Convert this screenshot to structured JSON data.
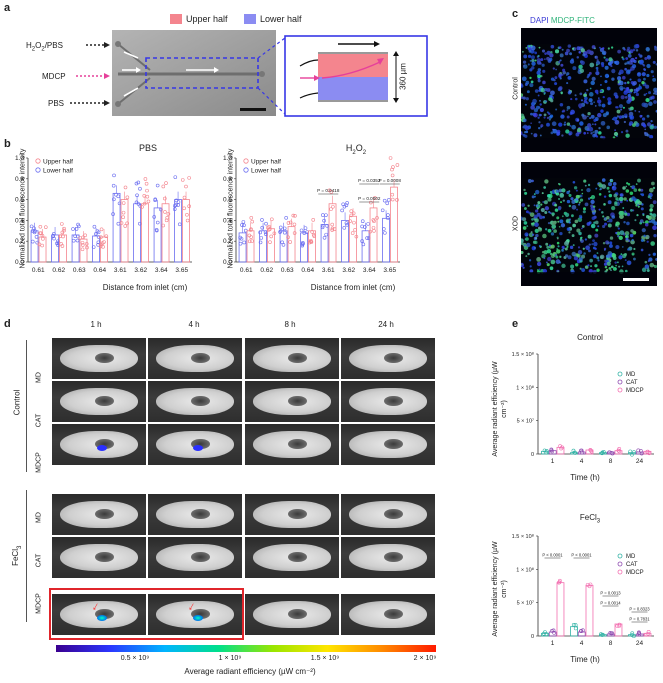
{
  "panels": {
    "a": "a",
    "b": "b",
    "c": "c",
    "d": "d",
    "e": "e"
  },
  "panel_a": {
    "legend_upper": "Upper half",
    "legend_lower": "Lower half",
    "inlet_top": "H2O2/PBS",
    "inlet_mid": "MDCP",
    "inlet_bot": "PBS",
    "width_label": "360 µm",
    "colors": {
      "upper": "#f4858e",
      "lower": "#8b8cf2",
      "dashed_box": "#3737e6",
      "arrow_mid": "#e6409a"
    }
  },
  "panel_b": {
    "ylabel": "Normalized total fluorescence intensity",
    "xlabel": "Distance from inlet (cm)",
    "legend_upper": "Upper half",
    "legend_lower": "Lower half"
  },
  "panel_c": {
    "label_dapi": "DAPI",
    "label_mdcp": "MDCP-FITC",
    "row_control": "Control",
    "row_xod": "XOD"
  },
  "panel_d": {
    "times": [
      "1 h",
      "4 h",
      "8 h",
      "24 h"
    ],
    "group_control": "Control",
    "group_fecl3": "FeCl3",
    "rows": [
      "MD",
      "CAT",
      "MDCP",
      "MD",
      "CAT",
      "MDCP"
    ],
    "colorbar_ticks": [
      "0.5 × 10⁹",
      "1 × 10⁹",
      "1.5 × 10⁹",
      "2 × 10⁹"
    ],
    "colorbar_label": "Average radiant efficiency (µW cm⁻²)"
  },
  "panel_e": {
    "ylabel": "Average radiant efficiency (µW cm⁻²)",
    "xlabel": "Time (h)"
  },
  "chart_data": [
    {
      "type": "bar",
      "title": "PBS",
      "xlabel": "Distance from inlet (cm)",
      "ylabel": "Normalized total fluorescence intensity",
      "ylim": [
        0,
        1.0
      ],
      "yticks": [
        0,
        0.2,
        0.4,
        0.6,
        0.8,
        1.0
      ],
      "categories": [
        "0.61",
        "0.62",
        "0.63",
        "0.64",
        "3.61",
        "3.62",
        "3.64",
        "3.65"
      ],
      "series": [
        {
          "name": "Upper half",
          "color": "#f4858e",
          "values": [
            0.24,
            0.26,
            0.22,
            0.24,
            0.6,
            0.56,
            0.56,
            0.6
          ]
        },
        {
          "name": "Lower half",
          "color": "#6b6ef0",
          "values": [
            0.3,
            0.26,
            0.26,
            0.25,
            0.66,
            0.56,
            0.52,
            0.6
          ]
        }
      ],
      "annotations": []
    },
    {
      "type": "bar",
      "title": "H2O2",
      "xlabel": "Distance from inlet (cm)",
      "ylabel": "Normalized total fluorescence intensity",
      "ylim": [
        0,
        1.0
      ],
      "yticks": [
        0,
        0.2,
        0.4,
        0.6,
        0.8,
        1.0
      ],
      "categories": [
        "0.61",
        "0.62",
        "0.63",
        "0.64",
        "3.61",
        "3.62",
        "3.64",
        "3.65"
      ],
      "series": [
        {
          "name": "Upper half",
          "color": "#f4858e",
          "values": [
            0.3,
            0.32,
            0.34,
            0.3,
            0.56,
            0.44,
            0.52,
            0.72
          ]
        },
        {
          "name": "Lower half",
          "color": "#6b6ef0",
          "values": [
            0.28,
            0.3,
            0.3,
            0.28,
            0.36,
            0.4,
            0.3,
            0.42
          ]
        }
      ],
      "annotations": [
        "P = 0.0418",
        "P = 0.0352",
        "P = 0.0002",
        "P = 0.0008"
      ]
    },
    {
      "type": "bar",
      "title": "Control",
      "xlabel": "Time (h)",
      "ylabel": "Average radiant efficiency (µW cm⁻²)",
      "ylim": [
        0,
        150000000.0
      ],
      "yticks": [
        "0",
        "5 × 10⁷",
        "1 × 10⁸",
        "1.5 × 10⁸"
      ],
      "categories": [
        "1",
        "4",
        "8",
        "24"
      ],
      "series": [
        {
          "name": "MD",
          "color": "#33b3a6",
          "values": [
            4000000.0,
            2000000.0,
            2000000.0,
            2000000.0
          ]
        },
        {
          "name": "CAT",
          "color": "#8e4bb0",
          "values": [
            5000000.0,
            3000000.0,
            3000000.0,
            3000000.0
          ]
        },
        {
          "name": "MDCP",
          "color": "#f36fb0",
          "values": [
            10000000.0,
            6000000.0,
            5000000.0,
            4000000.0
          ]
        }
      ],
      "annotations": []
    },
    {
      "type": "bar",
      "title": "FeCl3",
      "xlabel": "Time (h)",
      "ylabel": "Average radiant efficiency (µW cm⁻²)",
      "ylim": [
        0,
        150000000.0
      ],
      "yticks": [
        "0",
        "5 × 10⁷",
        "1 × 10⁸",
        "1.5 × 10⁸"
      ],
      "categories": [
        "1",
        "4",
        "8",
        "24"
      ],
      "series": [
        {
          "name": "MD",
          "color": "#33b3a6",
          "values": [
            4000000.0,
            14000000.0,
            2000000.0,
            2000000.0
          ]
        },
        {
          "name": "CAT",
          "color": "#8e4bb0",
          "values": [
            6000000.0,
            6000000.0,
            3000000.0,
            3000000.0
          ]
        },
        {
          "name": "MDCP",
          "color": "#f36fb0",
          "values": [
            80000000.0,
            76000000.0,
            18000000.0,
            4000000.0
          ]
        }
      ],
      "annotations": [
        "P < 0.0001",
        "P < 0.0001",
        "P = 0.0013",
        "P = 0.0014",
        "P = 0.8323",
        "P = 0.7831"
      ]
    }
  ]
}
